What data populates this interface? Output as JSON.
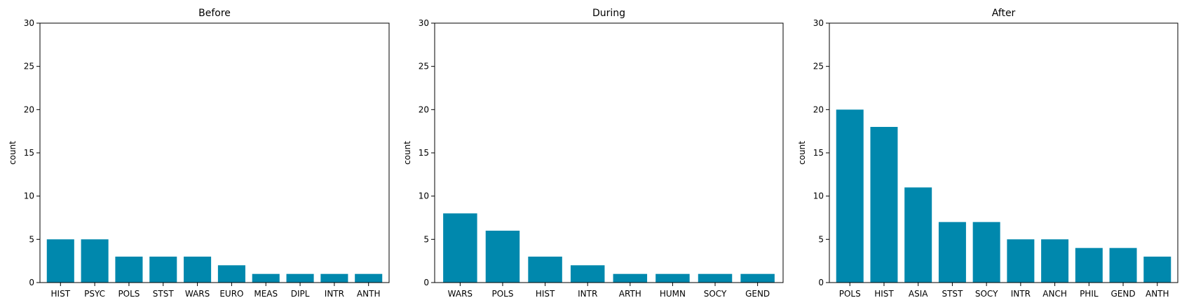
{
  "colors": {
    "bar": "#0088ad",
    "axis": "#000000",
    "background": "#ffffff"
  },
  "chart_data": [
    {
      "type": "bar",
      "title": "Before",
      "xlabel": "",
      "ylabel": "count",
      "ylim": [
        0,
        30
      ],
      "yticks": [
        0,
        5,
        10,
        15,
        20,
        25,
        30
      ],
      "grid": false,
      "categories": [
        "HIST",
        "PSYC",
        "POLS",
        "STST",
        "WARS",
        "EURO",
        "MEAS",
        "DIPL",
        "INTR",
        "ANTH"
      ],
      "values": [
        5,
        5,
        3,
        3,
        3,
        2,
        1,
        1,
        1,
        1
      ]
    },
    {
      "type": "bar",
      "title": "During",
      "xlabel": "",
      "ylabel": "count",
      "ylim": [
        0,
        30
      ],
      "yticks": [
        0,
        5,
        10,
        15,
        20,
        25,
        30
      ],
      "grid": false,
      "categories": [
        "WARS",
        "POLS",
        "HIST",
        "INTR",
        "ARTH",
        "HUMN",
        "SOCY",
        "GEND"
      ],
      "values": [
        8,
        6,
        3,
        2,
        1,
        1,
        1,
        1
      ]
    },
    {
      "type": "bar",
      "title": "After",
      "xlabel": "",
      "ylabel": "count",
      "ylim": [
        0,
        30
      ],
      "yticks": [
        0,
        5,
        10,
        15,
        20,
        25,
        30
      ],
      "grid": false,
      "categories": [
        "POLS",
        "HIST",
        "ASIA",
        "STST",
        "SOCY",
        "INTR",
        "ANCH",
        "PHIL",
        "GEND",
        "ANTH"
      ],
      "values": [
        20,
        18,
        11,
        7,
        7,
        5,
        5,
        4,
        4,
        3
      ]
    }
  ]
}
